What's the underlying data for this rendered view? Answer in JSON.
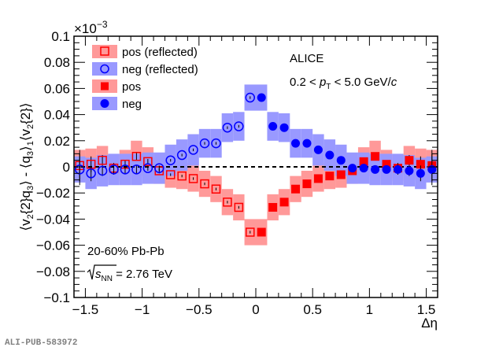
{
  "chart_data": {
    "type": "scatter",
    "title": "",
    "xlabel": "Δη",
    "ylabel_parts": [
      "⟨v",
      "2",
      "{2}q",
      "3",
      "⟩ - ⟨q",
      "3",
      "⟩",
      "1",
      "⟨v",
      "2",
      "{2}⟩"
    ],
    "ylabel": "<v2{2}q3> - <q3>1<v2{2}>",
    "y_exponent_label": "×10",
    "y_exponent_power": "−3",
    "xlim": [
      -1.6,
      1.6
    ],
    "ylim": [
      -0.1,
      0.1
    ],
    "x_major_ticks": [
      -1.5,
      -1,
      -0.5,
      0,
      0.5,
      1,
      1.5
    ],
    "x_tick_labels": [
      "−1.5",
      "−1",
      "−0.5",
      "0",
      "0.5",
      "1",
      "1.5"
    ],
    "y_major_ticks": [
      -0.1,
      -0.08,
      -0.06,
      -0.04,
      -0.02,
      0,
      0.02,
      0.04,
      0.06,
      0.08,
      0.1
    ],
    "y_tick_labels": [
      "−0.1",
      "−0.08",
      "−0.06",
      "−0.04",
      "−0.02",
      "0",
      "0.02",
      "0.04",
      "0.06",
      "0.08",
      "0.1"
    ],
    "grid": false,
    "reference_line": {
      "y": 0,
      "style": "dashed"
    },
    "x": [
      0.05,
      0.15,
      0.25,
      0.35,
      0.45,
      0.55,
      0.65,
      0.75,
      0.85,
      0.95,
      1.05,
      1.15,
      1.25,
      1.35,
      1.45,
      1.55
    ],
    "series": [
      {
        "name": "pos (reflected)",
        "marker": "open-square",
        "color": "#ff0000",
        "band_color": "#ff9999",
        "reflected": true,
        "values": [
          -0.05,
          -0.031,
          -0.027,
          -0.017,
          -0.013,
          -0.009,
          -0.007,
          -0.006,
          -0.003,
          0.004,
          0.008,
          0.002,
          -0.001,
          0.005,
          0.002,
          0.001
        ],
        "stat_err": [
          0.001,
          0.001,
          0.001,
          0.001,
          0.001,
          0.001,
          0.001,
          0.001,
          0.002,
          0.002,
          0.003,
          0.003,
          0.004,
          0.004,
          0.006,
          0.012
        ],
        "sys_err": [
          0.01,
          0.01,
          0.01,
          0.01,
          0.01,
          0.01,
          0.01,
          0.01,
          0.01,
          0.011,
          0.012,
          0.011,
          0.01,
          0.011,
          0.012,
          0.012
        ]
      },
      {
        "name": "neg (reflected)",
        "marker": "open-circle",
        "color": "#0000ff",
        "band_color": "#9999ff",
        "reflected": true,
        "values": [
          0.053,
          0.031,
          0.03,
          0.018,
          0.018,
          0.013,
          0.009,
          0.005,
          -0.001,
          -0.001,
          -0.002,
          -0.002,
          -0.002,
          -0.003,
          -0.005,
          -0.002
        ],
        "stat_err": [
          0.001,
          0.001,
          0.001,
          0.001,
          0.001,
          0.001,
          0.001,
          0.001,
          0.002,
          0.002,
          0.003,
          0.003,
          0.004,
          0.004,
          0.006,
          0.012
        ],
        "sys_err": [
          0.01,
          0.011,
          0.011,
          0.011,
          0.011,
          0.012,
          0.012,
          0.012,
          0.012,
          0.012,
          0.012,
          0.012,
          0.012,
          0.012,
          0.012,
          0.01
        ]
      },
      {
        "name": "pos",
        "marker": "filled-square",
        "color": "#ff0000",
        "band_color": "#ff9999",
        "reflected": false,
        "values": [
          -0.05,
          -0.031,
          -0.027,
          -0.017,
          -0.013,
          -0.009,
          -0.007,
          -0.006,
          -0.003,
          0.004,
          0.008,
          0.002,
          -0.001,
          0.005,
          0.002,
          0.001
        ],
        "stat_err": [
          0.001,
          0.001,
          0.001,
          0.001,
          0.001,
          0.001,
          0.001,
          0.001,
          0.002,
          0.002,
          0.003,
          0.003,
          0.004,
          0.004,
          0.006,
          0.012
        ],
        "sys_err": [
          0.01,
          0.01,
          0.01,
          0.01,
          0.01,
          0.01,
          0.01,
          0.01,
          0.01,
          0.011,
          0.012,
          0.011,
          0.01,
          0.011,
          0.012,
          0.012
        ]
      },
      {
        "name": "neg",
        "marker": "filled-circle",
        "color": "#0000ff",
        "band_color": "#9999ff",
        "reflected": false,
        "values": [
          0.053,
          0.031,
          0.03,
          0.018,
          0.018,
          0.013,
          0.009,
          0.005,
          -0.001,
          -0.001,
          -0.002,
          -0.002,
          -0.002,
          -0.003,
          -0.005,
          -0.002
        ],
        "stat_err": [
          0.001,
          0.001,
          0.001,
          0.001,
          0.001,
          0.001,
          0.001,
          0.001,
          0.002,
          0.002,
          0.003,
          0.003,
          0.004,
          0.004,
          0.006,
          0.012
        ],
        "sys_err": [
          0.01,
          0.011,
          0.011,
          0.011,
          0.011,
          0.012,
          0.012,
          0.012,
          0.012,
          0.012,
          0.012,
          0.012,
          0.012,
          0.012,
          0.012,
          0.01
        ]
      }
    ],
    "legend": {
      "placement": "top-left",
      "entries": [
        "pos (reflected)",
        "neg (reflected)",
        "pos",
        "neg"
      ]
    },
    "annotations": {
      "experiment": "ALICE",
      "pt_range_prefix": "0.2 < ",
      "pt_symbol": "p",
      "pt_subscript": "T",
      "pt_range_suffix": " < 5.0 GeV/",
      "pt_unit_italic": "c",
      "centrality": "20-60% Pb-Pb",
      "energy_symbol": "s",
      "energy_subscript": "NN",
      "energy_value": " = 2.76 TeV"
    }
  },
  "watermark": "ALI-PUB-583972"
}
